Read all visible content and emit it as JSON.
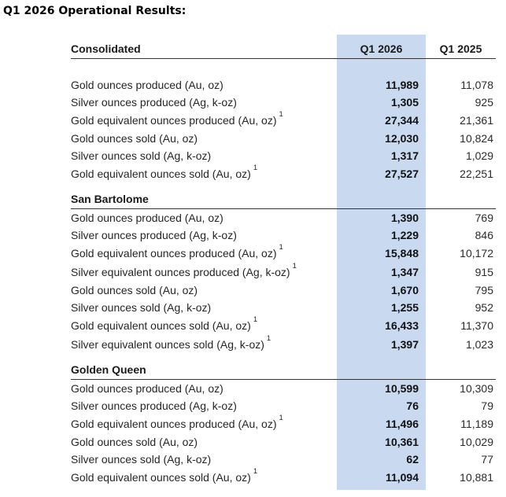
{
  "page": {
    "title": "Q1 2026 Operational Results:"
  },
  "table": {
    "column_headers": [
      "Q1 2026",
      "Q1 2025"
    ],
    "highlight": {
      "column": "Q1 2026",
      "color": "#C8D9F0"
    },
    "sections": [
      {
        "name": "Consolidated",
        "rows": [
          {
            "label": "Gold ounces produced (Au, oz)",
            "sup": "",
            "q1_2026": "11,989",
            "q1_2025": "11,078"
          },
          {
            "label": "Silver ounces produced (Ag, k-oz)",
            "sup": "",
            "q1_2026": "1,305",
            "q1_2025": "925"
          },
          {
            "label": "Gold equivalent ounces produced (Au, oz)",
            "sup": "1",
            "q1_2026": "27,344",
            "q1_2025": "21,361"
          },
          {
            "label": "Gold ounces sold (Au, oz)",
            "sup": "",
            "q1_2026": "12,030",
            "q1_2025": "10,824"
          },
          {
            "label": "Silver ounces sold (Ag, k-oz)",
            "sup": "",
            "q1_2026": "1,317",
            "q1_2025": "1,029"
          },
          {
            "label": "Gold equivalent ounces sold (Au, oz)",
            "sup": "1",
            "q1_2026": "27,527",
            "q1_2025": "22,251"
          }
        ]
      },
      {
        "name": "San Bartolome",
        "rows": [
          {
            "label": "Gold ounces produced (Au, oz)",
            "sup": "",
            "q1_2026": "1,390",
            "q1_2025": "769"
          },
          {
            "label": "Silver ounces produced (Ag, k-oz)",
            "sup": "",
            "q1_2026": "1,229",
            "q1_2025": "846"
          },
          {
            "label": "Gold equivalent ounces produced (Au, oz)",
            "sup": "1",
            "q1_2026": "15,848",
            "q1_2025": "10,172"
          },
          {
            "label": "Silver equivalent ounces produced (Ag, k-oz)",
            "sup": "1",
            "q1_2026": "1,347",
            "q1_2025": "915"
          },
          {
            "label": "Gold ounces sold (Au, oz)",
            "sup": "",
            "q1_2026": "1,670",
            "q1_2025": "795"
          },
          {
            "label": "Silver ounces sold (Ag, k-oz)",
            "sup": "",
            "q1_2026": "1,255",
            "q1_2025": "952"
          },
          {
            "label": "Gold equivalent ounces sold (Au, oz)",
            "sup": "1",
            "q1_2026": "16,433",
            "q1_2025": "11,370"
          },
          {
            "label": "Silver equivalent ounces sold (Ag, k-oz)",
            "sup": "1",
            "q1_2026": "1,397",
            "q1_2025": "1,023"
          }
        ]
      },
      {
        "name": "Golden Queen",
        "rows": [
          {
            "label": "Gold ounces produced (Au, oz)",
            "sup": "",
            "q1_2026": "10,599",
            "q1_2025": "10,309"
          },
          {
            "label": "Silver ounces produced (Ag, k-oz)",
            "sup": "",
            "q1_2026": "76",
            "q1_2025": "79"
          },
          {
            "label": "Gold equivalent ounces produced (Au, oz)",
            "sup": "1",
            "q1_2026": "11,496",
            "q1_2025": "11,189"
          },
          {
            "label": "Gold ounces sold (Au, oz)",
            "sup": "",
            "q1_2026": "10,361",
            "q1_2025": "10,029"
          },
          {
            "label": "Silver ounces sold (Ag, k-oz)",
            "sup": "",
            "q1_2026": "62",
            "q1_2025": "77"
          },
          {
            "label": "Gold equivalent ounces sold (Au, oz)",
            "sup": "1",
            "q1_2026": "11,094",
            "q1_2025": "10,881"
          }
        ]
      }
    ]
  }
}
